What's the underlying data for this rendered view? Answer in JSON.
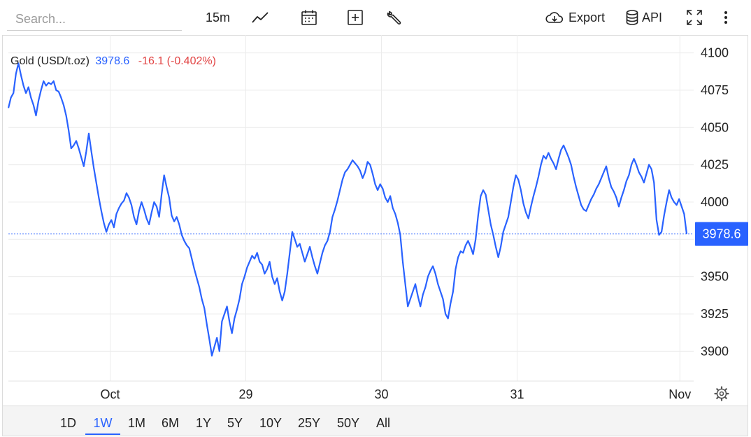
{
  "toolbar": {
    "search_placeholder": "Search...",
    "interval": "15m",
    "export_label": "Export",
    "api_label": "API"
  },
  "legend": {
    "name": "Gold (USD/t.oz)",
    "price": "3978.6",
    "change": "-16.1 (-0.402%)"
  },
  "ranges": [
    "1D",
    "1W",
    "1M",
    "6M",
    "1Y",
    "5Y",
    "10Y",
    "25Y",
    "50Y",
    "All"
  ],
  "active_range": "1W",
  "colors": {
    "line": "#2962ff",
    "down": "#e24545",
    "grid": "#ececec"
  },
  "chart_data": {
    "type": "line",
    "title": "",
    "xlabel": "",
    "ylabel": "",
    "ylim": [
      3880,
      4112
    ],
    "y_ticks": [
      3900,
      3925,
      3950,
      3975,
      4000,
      4025,
      4050,
      4075,
      4100
    ],
    "y_tick_labels": [
      "3900",
      "3925",
      "3950",
      "",
      "4000",
      "4025",
      "4050",
      "4075",
      "4100"
    ],
    "x_tick_labels": [
      {
        "label": "Oct",
        "t": 0.15
      },
      {
        "label": "29",
        "t": 0.35
      },
      {
        "label": "30",
        "t": 0.55
      },
      {
        "label": "31",
        "t": 0.75
      },
      {
        "label": "Nov",
        "t": 0.99
      }
    ],
    "last_price": 3978.6,
    "last_price_label": "3978.6",
    "series": [
      {
        "values": [
          4063,
          4070,
          4073,
          4086,
          4093,
          4085,
          4078,
          4073,
          4077,
          4070,
          4065,
          4058,
          4068,
          4075,
          4081,
          4078,
          4080,
          4079,
          4081,
          4075,
          4074,
          4070,
          4065,
          4058,
          4048,
          4036,
          4038,
          4041,
          4036,
          4030,
          4024,
          4034,
          4046,
          4034,
          4023,
          4013,
          4003,
          3994,
          3986,
          3980,
          3985,
          3988,
          3983,
          3992,
          3996,
          3999,
          4001,
          4006,
          4003,
          3998,
          3990,
          3985,
          3994,
          4000,
          3995,
          3989,
          3985,
          3993,
          4000,
          3997,
          3990,
          4005,
          4018,
          4010,
          4003,
          3991,
          3987,
          3990,
          3985,
          3978,
          3974,
          3971,
          3969,
          3962,
          3955,
          3949,
          3943,
          3935,
          3929,
          3918,
          3908,
          3897,
          3903,
          3909,
          3900,
          3920,
          3925,
          3930,
          3920,
          3912,
          3922,
          3928,
          3935,
          3945,
          3950,
          3956,
          3960,
          3964,
          3962,
          3966,
          3960,
          3958,
          3952,
          3955,
          3960,
          3950,
          3945,
          3949,
          3940,
          3934,
          3940,
          3952,
          3966,
          3980,
          3975,
          3970,
          3972,
          3966,
          3960,
          3965,
          3970,
          3963,
          3957,
          3952,
          3959,
          3966,
          3971,
          3974,
          3980,
          3990,
          3995,
          4001,
          4008,
          4015,
          4020,
          4022,
          4025,
          4028,
          4026,
          4024,
          4021,
          4016,
          4020,
          4027,
          4025,
          4019,
          4012,
          4008,
          4012,
          4009,
          4003,
          4000,
          4004,
          3996,
          3992,
          3986,
          3978,
          3960,
          3945,
          3930,
          3935,
          3940,
          3945,
          3937,
          3930,
          3938,
          3943,
          3950,
          3954,
          3957,
          3952,
          3945,
          3940,
          3935,
          3925,
          3922,
          3932,
          3940,
          3955,
          3963,
          3967,
          3966,
          3971,
          3974,
          3970,
          3965,
          3975,
          3991,
          4004,
          4008,
          4005,
          3995,
          3985,
          3978,
          3970,
          3963,
          3970,
          3980,
          3985,
          3990,
          4000,
          4010,
          4018,
          4015,
          4008,
          3999,
          3993,
          3989,
          3997,
          4004,
          4010,
          4017,
          4025,
          4031,
          4029,
          4033,
          4029,
          4026,
          4022,
          4029,
          4035,
          4038,
          4034,
          4030,
          4025,
          4017,
          4010,
          4004,
          3998,
          3995,
          3994,
          3998,
          4002,
          4005,
          4009,
          4012,
          4016,
          4020,
          4024,
          4016,
          4010,
          4007,
          4003,
          3997,
          4003,
          4008,
          4014,
          4018,
          4025,
          4029,
          4025,
          4020,
          4017,
          4013,
          4019,
          4025,
          4022,
          4013,
          3988,
          3978,
          3980,
          3991,
          4000,
          4008,
          4003,
          4000,
          3998,
          4002,
          3997,
          3992,
          3978.6
        ]
      }
    ]
  }
}
